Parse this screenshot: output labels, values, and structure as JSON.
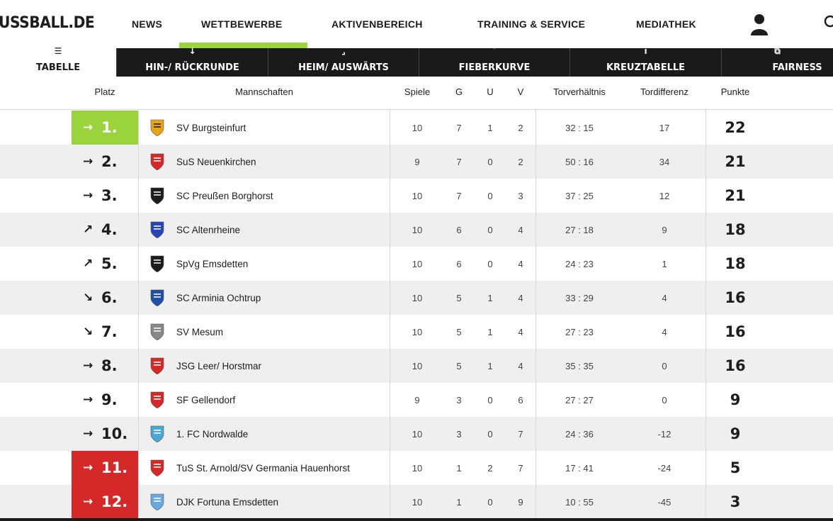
{
  "header": {
    "logo": "USSBALL.DE",
    "nav": [
      "NEWS",
      "WETTBEWERBE",
      "AKTIVENBEREICH",
      "TRAINING & SERVICE",
      "MEDIATHEK"
    ],
    "accent": "#9bd33c"
  },
  "subtabs": [
    {
      "label": "TABELLE",
      "icon": "list-icon"
    },
    {
      "label": "HIN-/ RÜCKRUNDE",
      "icon": "arrow-down-icon"
    },
    {
      "label": "HEIM/ AUSWÄRTS",
      "icon": "home-away-icon"
    },
    {
      "label": "FIEBERKURVE",
      "icon": "curve-icon"
    },
    {
      "label": "KREUZTABELLE",
      "icon": "cross-table-icon"
    },
    {
      "label": "FAIRNESS",
      "icon": "card-icon"
    }
  ],
  "table": {
    "headers": {
      "platz": "Platz",
      "mannschaften": "Mannschaften",
      "spiele": "Spiele",
      "g": "G",
      "u": "U",
      "v": "V",
      "tore": "Torverhältnis",
      "diff": "Tordifferenz",
      "punkte": "Punkte"
    },
    "rows": [
      {
        "rank": "1.",
        "trend": "→",
        "zone": "promo",
        "club": "SV Burgsteinfurt",
        "spiele": "10",
        "g": "7",
        "u": "1",
        "v": "2",
        "tore": "32 : 15",
        "diff": "17",
        "punkte": "22"
      },
      {
        "rank": "2.",
        "trend": "→",
        "zone": "",
        "club": "SuS Neuenkirchen",
        "spiele": "9",
        "g": "7",
        "u": "0",
        "v": "2",
        "tore": "50 : 16",
        "diff": "34",
        "punkte": "21"
      },
      {
        "rank": "3.",
        "trend": "→",
        "zone": "",
        "club": "SC Preußen Borghorst",
        "spiele": "10",
        "g": "7",
        "u": "0",
        "v": "3",
        "tore": "37 : 25",
        "diff": "12",
        "punkte": "21"
      },
      {
        "rank": "4.",
        "trend": "↗",
        "zone": "",
        "club": "SC Altenrheine",
        "spiele": "10",
        "g": "6",
        "u": "0",
        "v": "4",
        "tore": "27 : 18",
        "diff": "9",
        "punkte": "18"
      },
      {
        "rank": "5.",
        "trend": "↗",
        "zone": "",
        "club": "SpVg Emsdetten",
        "spiele": "10",
        "g": "6",
        "u": "0",
        "v": "4",
        "tore": "24 : 23",
        "diff": "1",
        "punkte": "18"
      },
      {
        "rank": "6.",
        "trend": "↘",
        "zone": "",
        "club": "SC Arminia Ochtrup",
        "spiele": "10",
        "g": "5",
        "u": "1",
        "v": "4",
        "tore": "33 : 29",
        "diff": "4",
        "punkte": "16"
      },
      {
        "rank": "7.",
        "trend": "↘",
        "zone": "",
        "club": "SV Mesum",
        "spiele": "10",
        "g": "5",
        "u": "1",
        "v": "4",
        "tore": "27 : 23",
        "diff": "4",
        "punkte": "16"
      },
      {
        "rank": "8.",
        "trend": "→",
        "zone": "",
        "club": "JSG Leer/ Horstmar",
        "spiele": "10",
        "g": "5",
        "u": "1",
        "v": "4",
        "tore": "35 : 35",
        "diff": "0",
        "punkte": "16"
      },
      {
        "rank": "9.",
        "trend": "→",
        "zone": "",
        "club": "SF Gellendorf",
        "spiele": "9",
        "g": "3",
        "u": "0",
        "v": "6",
        "tore": "27 : 27",
        "diff": "0",
        "punkte": "9"
      },
      {
        "rank": "10.",
        "trend": "→",
        "zone": "",
        "club": "1. FC Nordwalde",
        "spiele": "10",
        "g": "3",
        "u": "0",
        "v": "7",
        "tore": "24 : 36",
        "diff": "-12",
        "punkte": "9"
      },
      {
        "rank": "11.",
        "trend": "→",
        "zone": "releg",
        "club": "TuS St. Arnold/SV Germania Hauenhorst",
        "spiele": "10",
        "g": "1",
        "u": "2",
        "v": "7",
        "tore": "17 : 41",
        "diff": "-24",
        "punkte": "5"
      },
      {
        "rank": "12.",
        "trend": "→",
        "zone": "releg",
        "club": "DJK Fortuna Emsdetten",
        "spiele": "10",
        "g": "1",
        "u": "0",
        "v": "9",
        "tore": "10 : 55",
        "diff": "-45",
        "punkte": "3"
      }
    ]
  }
}
